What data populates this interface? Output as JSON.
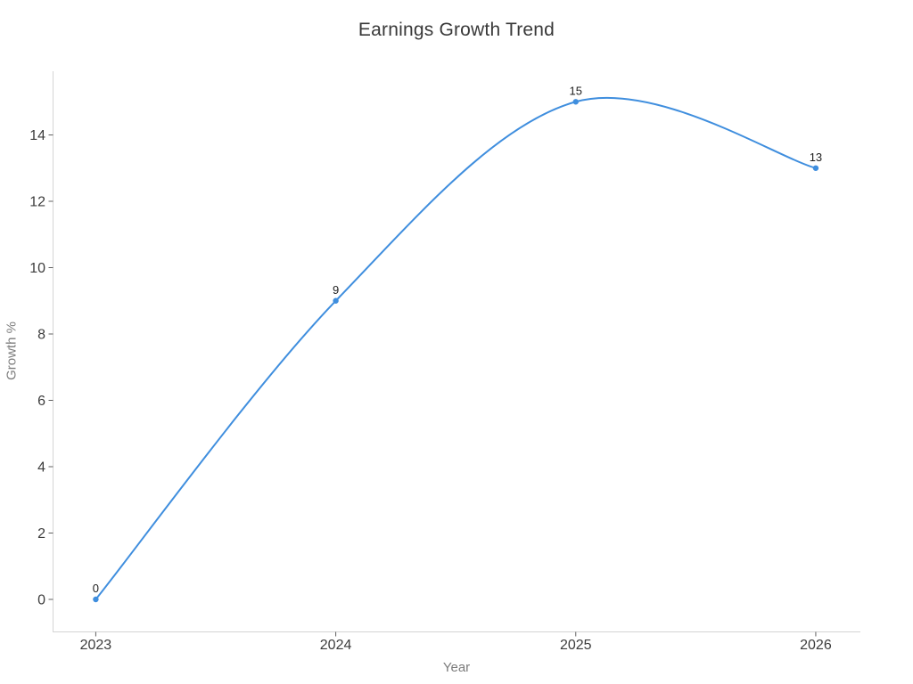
{
  "chart_data": {
    "type": "line",
    "title": "Earnings Growth Trend",
    "xlabel": "Year",
    "ylabel": "Growth %",
    "x": [
      2023,
      2024,
      2025,
      2026
    ],
    "x_tick_labels": [
      "2023",
      "2024",
      "2025",
      "2026"
    ],
    "values": [
      0,
      9,
      15,
      13
    ],
    "point_labels": [
      "0",
      "9",
      "15",
      "13"
    ],
    "yticks": [
      0,
      2,
      4,
      6,
      8,
      10,
      12,
      14
    ],
    "xlim": [
      2022.822,
      2026.186
    ],
    "ylim": [
      -0.98,
      15.92
    ],
    "grid": false,
    "legend": false,
    "line_shape": "spline",
    "marker": "circle",
    "colors": {
      "line": "#3f8ede",
      "marker": "#3f8ede",
      "title": "#393939",
      "tick_label": "#3c3c3c",
      "axis_label": "#7c7c7c",
      "spine": "#d4d4d4",
      "tick_mark": "#606060",
      "point_label": "#1e1e1e",
      "background": "#ffffff"
    }
  }
}
